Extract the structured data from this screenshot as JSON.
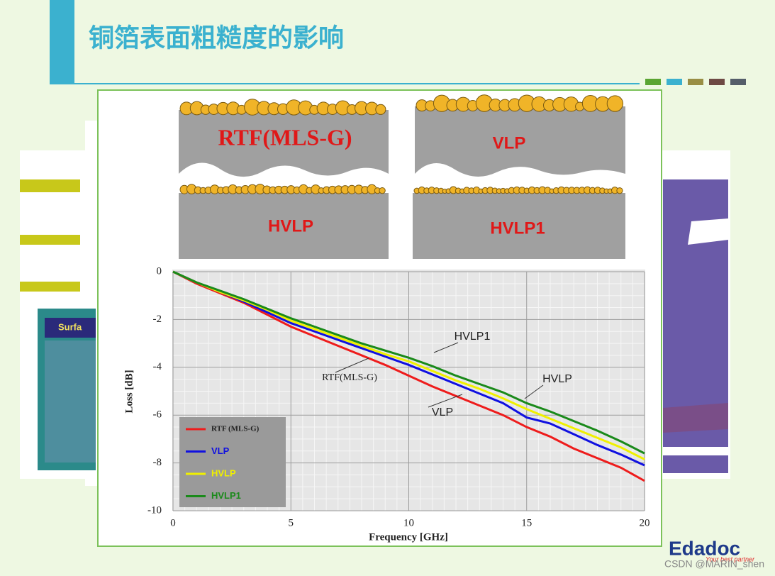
{
  "slide": {
    "title": "铜箔表面粗糙度的影响",
    "diagram_labels": [
      "RTF(MLS-G)",
      "VLP",
      "HVLP",
      "HVLP1"
    ],
    "side_text": "Surfa",
    "logo": "Edadoc",
    "logo_tagline": "Your best partner",
    "footer": "CSDN @MARIN_shen"
  },
  "chart_data": {
    "type": "line",
    "xlabel": "Frequency [GHz]",
    "ylabel": "Loss  [dB]",
    "x": [
      0,
      1,
      2,
      3,
      4,
      5,
      6,
      7,
      8,
      9,
      10,
      11,
      12,
      13,
      14,
      15,
      16,
      17,
      18,
      19,
      20
    ],
    "series": [
      {
        "name": "RTF (MLS-G)",
        "color": "#ee1c1c",
        "values": [
          0,
          -0.5,
          -0.9,
          -1.3,
          -1.8,
          -2.3,
          -2.7,
          -3.1,
          -3.5,
          -3.9,
          -4.35,
          -4.8,
          -5.2,
          -5.6,
          -6.0,
          -6.5,
          -6.9,
          -7.4,
          -7.8,
          -8.2,
          -8.75
        ]
      },
      {
        "name": "VLP",
        "color": "#1010e0",
        "values": [
          0,
          -0.45,
          -0.85,
          -1.25,
          -1.7,
          -2.15,
          -2.5,
          -2.85,
          -3.2,
          -3.55,
          -3.9,
          -4.3,
          -4.7,
          -5.1,
          -5.5,
          -6.1,
          -6.35,
          -6.8,
          -7.25,
          -7.65,
          -8.1
        ]
      },
      {
        "name": "HVLP",
        "color": "#f0f000",
        "values": [
          0,
          -0.45,
          -0.85,
          -1.2,
          -1.6,
          -2.05,
          -2.4,
          -2.75,
          -3.1,
          -3.45,
          -3.75,
          -4.15,
          -4.55,
          -4.9,
          -5.3,
          -5.75,
          -6.15,
          -6.55,
          -6.95,
          -7.35,
          -7.85
        ]
      },
      {
        "name": "HVLP1",
        "color": "#1a8a1a",
        "values": [
          0,
          -0.45,
          -0.8,
          -1.15,
          -1.55,
          -1.95,
          -2.3,
          -2.65,
          -3.0,
          -3.3,
          -3.6,
          -3.95,
          -4.35,
          -4.7,
          -5.05,
          -5.5,
          -5.85,
          -6.25,
          -6.65,
          -7.1,
          -7.6
        ]
      }
    ],
    "annotations": [
      "HVLP1",
      "RTF(MLS-G)",
      "HVLP",
      "VLP"
    ],
    "xlim": [
      0,
      20
    ],
    "xticks": [
      0,
      5,
      10,
      15,
      20
    ],
    "ylim": [
      -10,
      0
    ],
    "yticks": [
      0,
      -2,
      -4,
      -6,
      -8,
      -10
    ],
    "grid": true,
    "legend": "lower left"
  }
}
